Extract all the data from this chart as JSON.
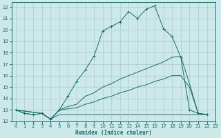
{
  "xlabel": "Humidex (Indice chaleur)",
  "bg_color": "#cce8e8",
  "line_color": "#1a6b6b",
  "grid_color": "#aacccc",
  "xlim": [
    -0.5,
    23
  ],
  "ylim": [
    12,
    22.4
  ],
  "xticks": [
    0,
    1,
    2,
    3,
    4,
    5,
    6,
    7,
    8,
    9,
    10,
    11,
    12,
    13,
    14,
    15,
    16,
    17,
    18,
    19,
    20,
    21,
    22,
    23
  ],
  "yticks": [
    12,
    13,
    14,
    15,
    16,
    17,
    18,
    19,
    20,
    21,
    22
  ],
  "line1": {
    "x": [
      0,
      1,
      2,
      3,
      4,
      5,
      6,
      7,
      8,
      9,
      10,
      11,
      12,
      13,
      14,
      15,
      16,
      17,
      18,
      19,
      20,
      21,
      22
    ],
    "y": [
      13.0,
      12.7,
      12.6,
      12.7,
      12.2,
      13.0,
      14.2,
      15.5,
      16.5,
      17.7,
      19.9,
      20.3,
      20.7,
      21.6,
      21.0,
      21.8,
      22.1,
      20.1,
      19.4,
      17.6,
      13.0,
      12.7,
      12.6
    ]
  },
  "line2": {
    "x": [
      0,
      3,
      4,
      5,
      6,
      7,
      8,
      9,
      10,
      11,
      12,
      13,
      14,
      15,
      16,
      17,
      18,
      19,
      20,
      21,
      22
    ],
    "y": [
      13.0,
      12.7,
      12.2,
      13.0,
      13.3,
      13.5,
      14.2,
      14.5,
      15.0,
      15.3,
      15.7,
      16.0,
      16.3,
      16.6,
      16.9,
      17.2,
      17.6,
      17.7,
      15.3,
      12.7,
      12.6
    ]
  },
  "line3": {
    "x": [
      0,
      3,
      4,
      5,
      6,
      7,
      8,
      9,
      10,
      11,
      12,
      13,
      14,
      15,
      16,
      17,
      18,
      19,
      20,
      21,
      22
    ],
    "y": [
      13.0,
      12.7,
      12.2,
      13.0,
      13.1,
      13.2,
      13.5,
      13.7,
      14.0,
      14.2,
      14.5,
      14.7,
      15.0,
      15.2,
      15.5,
      15.7,
      16.0,
      16.0,
      15.0,
      12.7,
      12.6
    ]
  },
  "line4": {
    "x": [
      0,
      1,
      2,
      3,
      4,
      5,
      6,
      7,
      8,
      9,
      10,
      11,
      12,
      13,
      14,
      15,
      16,
      17,
      18,
      19,
      20,
      21,
      22
    ],
    "y": [
      13.0,
      12.7,
      12.6,
      12.7,
      12.2,
      12.6,
      12.6,
      12.6,
      12.6,
      12.6,
      12.6,
      12.6,
      12.6,
      12.6,
      12.6,
      12.6,
      12.6,
      12.6,
      12.6,
      12.6,
      12.6,
      12.6,
      12.6
    ]
  }
}
